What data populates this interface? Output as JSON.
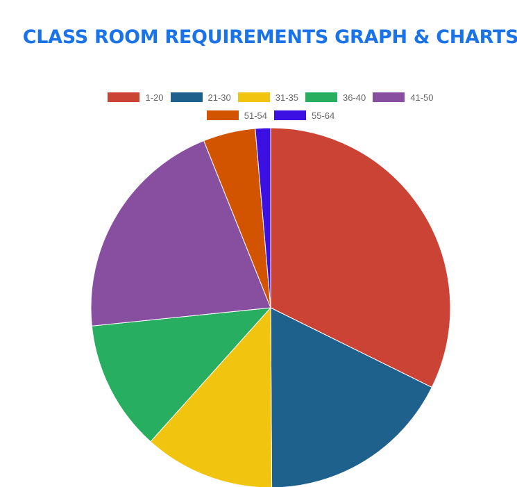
{
  "chart_data": {
    "type": "pie",
    "title": "CLASS ROOM REQUIREMENTS GRAPH & CHARTS",
    "legend_position": "top",
    "categories": [
      "1-20",
      "21-30",
      "31-35",
      "36-40",
      "41-50",
      "51-54",
      "55-64"
    ],
    "values": [
      33,
      18,
      12,
      12,
      21,
      4.8,
      1.4
    ],
    "colors": [
      "#cb4335",
      "#1f618d",
      "#f1c40f",
      "#27ae60",
      "#884ea0",
      "#d35400",
      "#3c10e3"
    ]
  }
}
